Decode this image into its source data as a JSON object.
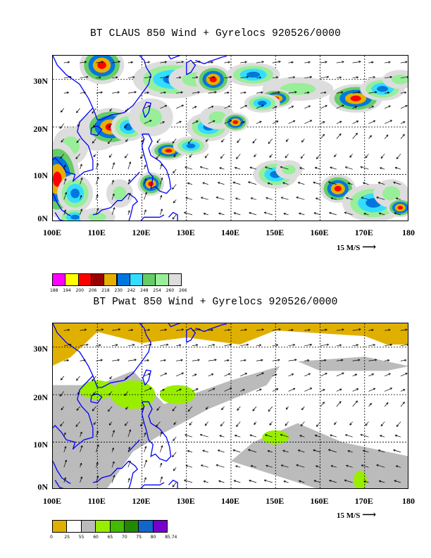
{
  "panels": [
    {
      "title": "BT CLAUS 850 Wind + Gyrelocs 920526/0000",
      "field": "claus",
      "legend_colors": [
        "#ff00ff",
        "#ffff00",
        "#ff0000",
        "#990000",
        "#e6b000",
        "#0077dd",
        "#33ddff",
        "#66cc66",
        "#99ee99",
        "#dddddd"
      ],
      "legend_labels": [
        "188",
        "194",
        "200",
        "206",
        "218",
        "230",
        "242",
        "248",
        "254",
        "260",
        "266"
      ]
    },
    {
      "title": "BT Pwat 850 Wind + Gyrelocs 920526/0000",
      "field": "pwat",
      "legend_colors": [
        "#e0b000",
        "#ffffff",
        "#bbbbbb",
        "#99ee00",
        "#44bb00",
        "#228800",
        "#1166cc",
        "#7700cc"
      ],
      "legend_labels": [
        "0",
        "25",
        "55",
        "60",
        "65",
        "70",
        "75",
        "80",
        "85.74"
      ]
    }
  ],
  "map": {
    "lat_labels": [
      "0N",
      "10N",
      "20N",
      "30N"
    ],
    "lon_labels": [
      "100E",
      "110E",
      "120E",
      "130E",
      "140E",
      "150E",
      "160E",
      "170E",
      "180"
    ],
    "lon_range": [
      100,
      180
    ],
    "lat_range": [
      0,
      35
    ],
    "wind_scale_label": "15 M/S",
    "coast_color": "#0000ff",
    "grid": "dashed"
  }
}
